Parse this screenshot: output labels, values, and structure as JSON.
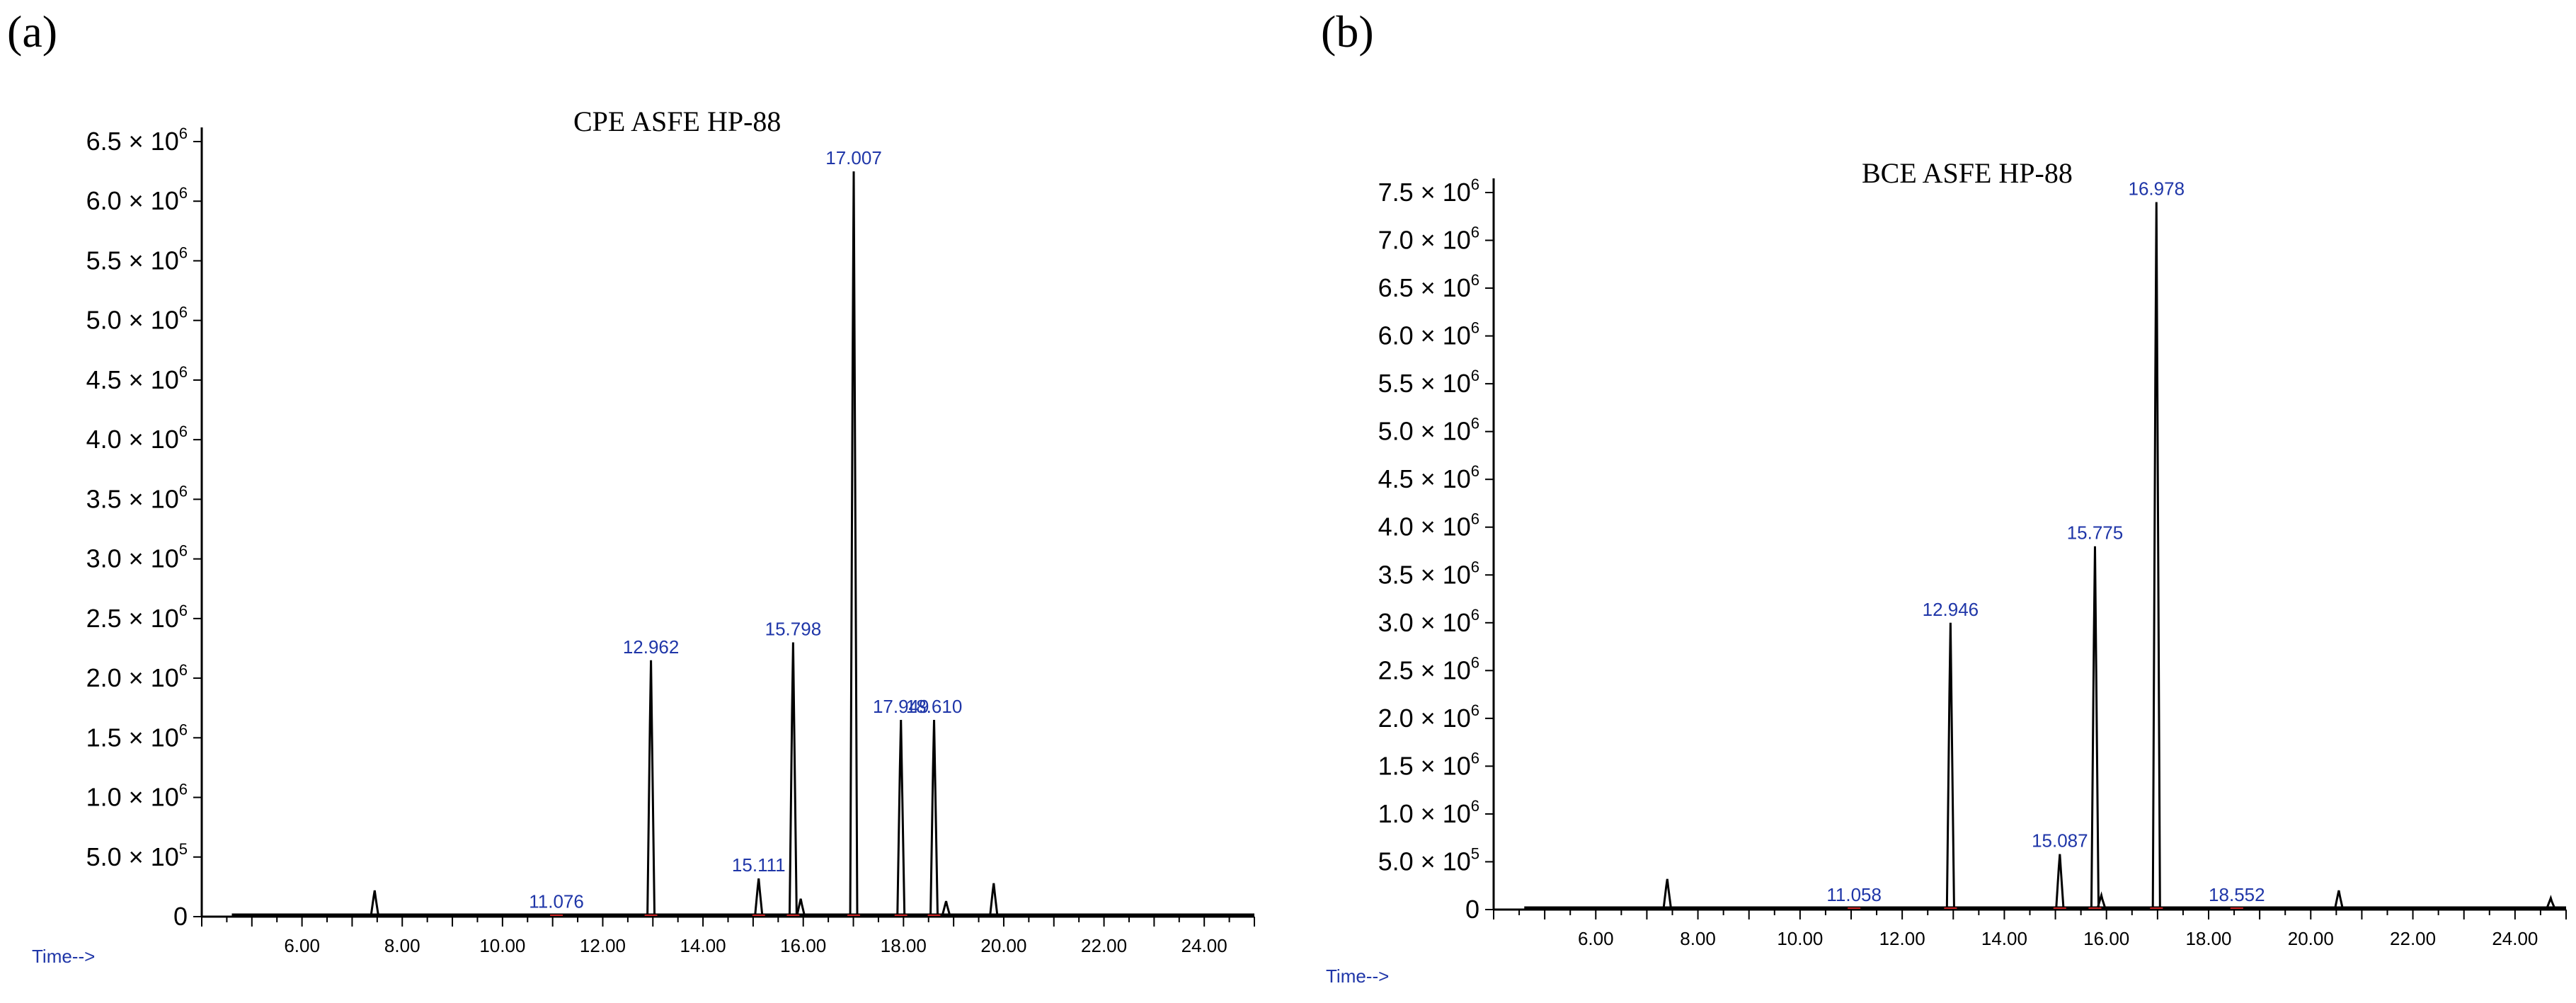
{
  "panels": [
    {
      "label": "(a)"
    },
    {
      "label": "(b)"
    }
  ],
  "chart_data": [
    {
      "type": "line",
      "title": "CPE ASFE HP-88",
      "xlabel": "Time-->",
      "ylabel": "",
      "xlim": [
        4.0,
        25.0
      ],
      "ylim": [
        0,
        6500000
      ],
      "x_ticks": [
        "6.00",
        "8.00",
        "10.00",
        "12.00",
        "14.00",
        "16.00",
        "18.00",
        "20.00",
        "22.00",
        "24.00"
      ],
      "y_ticks": [
        {
          "value": 0,
          "mant": "0",
          "exp": ""
        },
        {
          "value": 500000,
          "mant": "5.0 × 10",
          "exp": "5"
        },
        {
          "value": 1000000,
          "mant": "1.0 × 10",
          "exp": "6"
        },
        {
          "value": 1500000,
          "mant": "1.5 × 10",
          "exp": "6"
        },
        {
          "value": 2000000,
          "mant": "2.0 × 10",
          "exp": "6"
        },
        {
          "value": 2500000,
          "mant": "2.5 × 10",
          "exp": "6"
        },
        {
          "value": 3000000,
          "mant": "3.0 × 10",
          "exp": "6"
        },
        {
          "value": 3500000,
          "mant": "3.5 × 10",
          "exp": "6"
        },
        {
          "value": 4000000,
          "mant": "4.0 × 10",
          "exp": "6"
        },
        {
          "value": 4500000,
          "mant": "4.5 × 10",
          "exp": "6"
        },
        {
          "value": 5000000,
          "mant": "5.0 × 10",
          "exp": "6"
        },
        {
          "value": 5500000,
          "mant": "5.5 × 10",
          "exp": "6"
        },
        {
          "value": 6000000,
          "mant": "6.0 × 10",
          "exp": "6"
        },
        {
          "value": 6500000,
          "mant": "6.5 × 10",
          "exp": "6"
        }
      ],
      "peaks": [
        {
          "x": 7.45,
          "y": 220000
        },
        {
          "x": 11.076,
          "y": 15000,
          "label": "11.076"
        },
        {
          "x": 12.962,
          "y": 2150000,
          "label": "12.962"
        },
        {
          "x": 15.111,
          "y": 320000,
          "label": "15.111"
        },
        {
          "x": 15.798,
          "y": 2300000,
          "label": "15.798"
        },
        {
          "x": 15.95,
          "y": 150000
        },
        {
          "x": 17.007,
          "y": 6250000,
          "label": "17.007"
        },
        {
          "x": 17.949,
          "y": 1650000,
          "label": "17.949"
        },
        {
          "x": 18.61,
          "y": 1650000,
          "label": "18.610"
        },
        {
          "x": 18.85,
          "y": 130000
        },
        {
          "x": 19.8,
          "y": 280000
        }
      ]
    },
    {
      "type": "line",
      "title": "BCE ASFE HP-88",
      "xlabel": "Time-->",
      "ylabel": "",
      "xlim": [
        4.0,
        25.0
      ],
      "ylim": [
        0,
        7500000
      ],
      "x_ticks": [
        "6.00",
        "8.00",
        "10.00",
        "12.00",
        "14.00",
        "16.00",
        "18.00",
        "20.00",
        "22.00",
        "24.00"
      ],
      "y_ticks": [
        {
          "value": 0,
          "mant": "0",
          "exp": ""
        },
        {
          "value": 500000,
          "mant": "5.0 × 10",
          "exp": "5"
        },
        {
          "value": 1000000,
          "mant": "1.0 × 10",
          "exp": "6"
        },
        {
          "value": 1500000,
          "mant": "1.5 × 10",
          "exp": "6"
        },
        {
          "value": 2000000,
          "mant": "2.0 × 10",
          "exp": "6"
        },
        {
          "value": 2500000,
          "mant": "2.5 × 10",
          "exp": "6"
        },
        {
          "value": 3000000,
          "mant": "3.0 × 10",
          "exp": "6"
        },
        {
          "value": 3500000,
          "mant": "3.5 × 10",
          "exp": "6"
        },
        {
          "value": 4000000,
          "mant": "4.0 × 10",
          "exp": "6"
        },
        {
          "value": 4500000,
          "mant": "4.5 × 10",
          "exp": "6"
        },
        {
          "value": 5000000,
          "mant": "5.0 × 10",
          "exp": "6"
        },
        {
          "value": 5500000,
          "mant": "5.5 × 10",
          "exp": "6"
        },
        {
          "value": 6000000,
          "mant": "6.0 × 10",
          "exp": "6"
        },
        {
          "value": 6500000,
          "mant": "6.5 × 10",
          "exp": "6"
        },
        {
          "value": 7000000,
          "mant": "7.0 × 10",
          "exp": "6"
        },
        {
          "value": 7500000,
          "mant": "7.5 × 10",
          "exp": "6"
        }
      ],
      "peaks": [
        {
          "x": 7.4,
          "y": 320000
        },
        {
          "x": 11.058,
          "y": 15000,
          "label": "11.058"
        },
        {
          "x": 12.946,
          "y": 3000000,
          "label": "12.946"
        },
        {
          "x": 15.087,
          "y": 580000,
          "label": "15.087"
        },
        {
          "x": 15.775,
          "y": 3800000,
          "label": "15.775"
        },
        {
          "x": 15.9,
          "y": 150000
        },
        {
          "x": 16.978,
          "y": 7400000,
          "label": "16.978"
        },
        {
          "x": 18.552,
          "y": 15000,
          "label": "18.552"
        },
        {
          "x": 20.55,
          "y": 200000
        },
        {
          "x": 24.7,
          "y": 120000
        }
      ]
    }
  ]
}
